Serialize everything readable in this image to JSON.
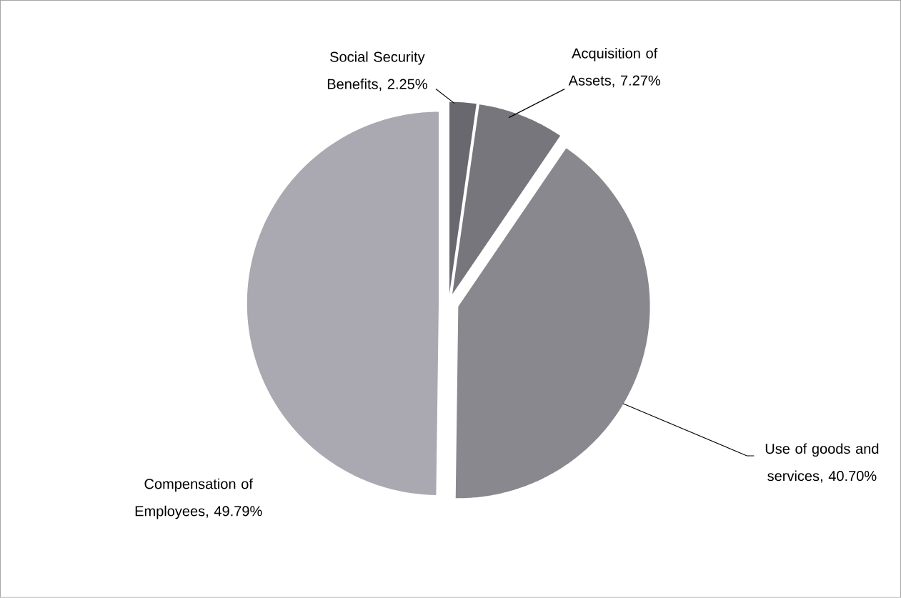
{
  "chart_data": {
    "type": "pie",
    "categories": [
      "Social Security Benefits",
      "Acquisition of Assets",
      "Use of goods and services",
      "Compensation of Employees"
    ],
    "values": [
      2.25,
      7.27,
      40.7,
      49.79
    ],
    "value_labels": [
      ", 2.25%",
      ", 7.27%",
      ", 40.70%",
      ", 49.79%"
    ],
    "colors": [
      "#68686e",
      "#76767c",
      "#88888e",
      "#aaa9b1"
    ]
  }
}
